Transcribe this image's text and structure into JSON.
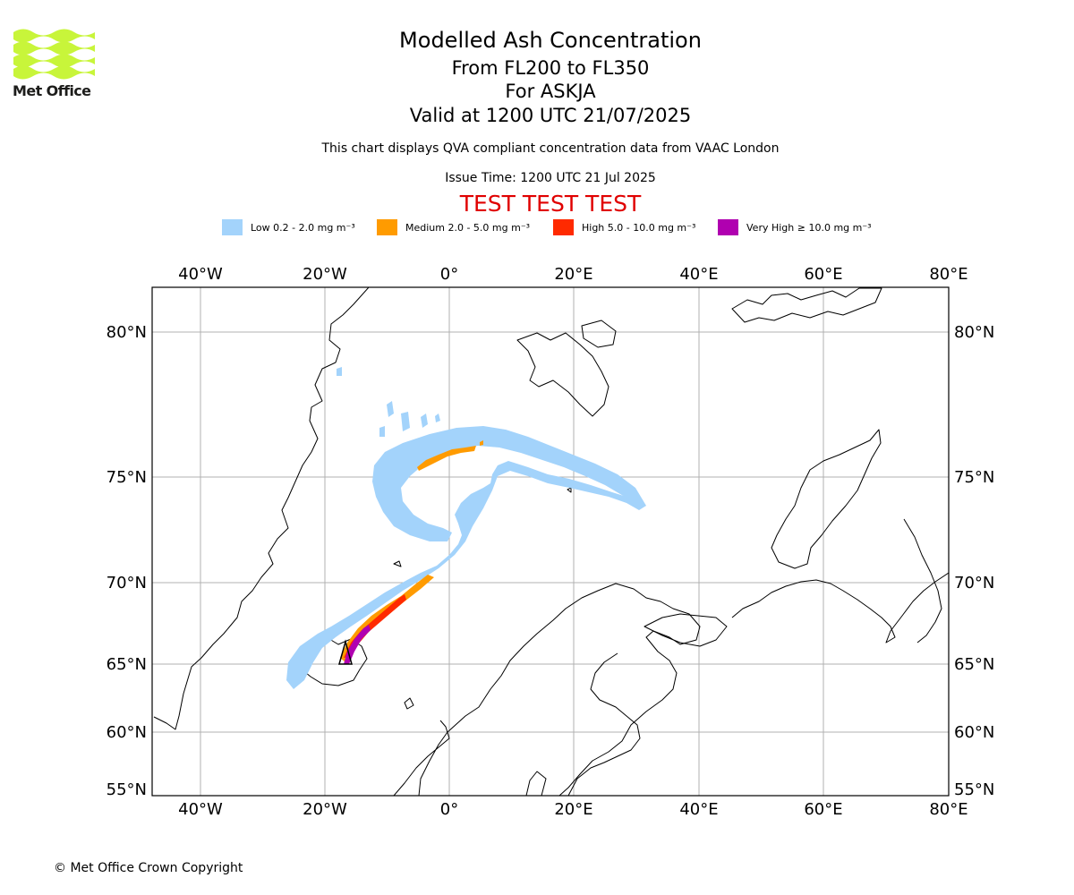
{
  "logo": {
    "text": "Met Office",
    "wave_color": "#c8f53a",
    "text_color": "#1d1d1b"
  },
  "header": {
    "title": "Modelled Ash Concentration",
    "subtitle_levels": "From FL200 to FL350",
    "subtitle_volcano": "For ASKJA",
    "subtitle_valid": "Valid at 1200 UTC 21/07/2025",
    "disclaimer": "This chart displays QVA compliant concentration data from VAAC London",
    "issue_time": "Issue Time: 1200 UTC 21 Jul 2025",
    "test_banner": "TEST TEST TEST",
    "test_color": "#e00000"
  },
  "legend": [
    {
      "label": "Low 0.2 - 2.0 mg m⁻³",
      "color": "#a3d3fb"
    },
    {
      "label": "Medium 2.0 - 5.0 mg m⁻³",
      "color": "#ff9b00"
    },
    {
      "label": "High 5.0 - 10.0 mg m⁻³",
      "color": "#ff2a00"
    },
    {
      "label": "Very High ≥ 10.0 mg m⁻³",
      "color": "#b000b0"
    }
  ],
  "map": {
    "lon_ticks": [
      "40°W",
      "20°W",
      "0°",
      "20°E",
      "40°E",
      "60°E",
      "80°E"
    ],
    "lat_ticks": [
      "80°N",
      "75°N",
      "70°N",
      "65°N",
      "60°N",
      "55°N"
    ],
    "lon_range": [
      -47.5,
      80
    ],
    "lat_range": [
      54.5,
      82
    ],
    "gridlines": true,
    "volcano": {
      "name": "ASKJA",
      "lat": 65.0,
      "lon": -16.8
    }
  },
  "footer": {
    "copyright": "© Met Office Crown Copyright"
  }
}
